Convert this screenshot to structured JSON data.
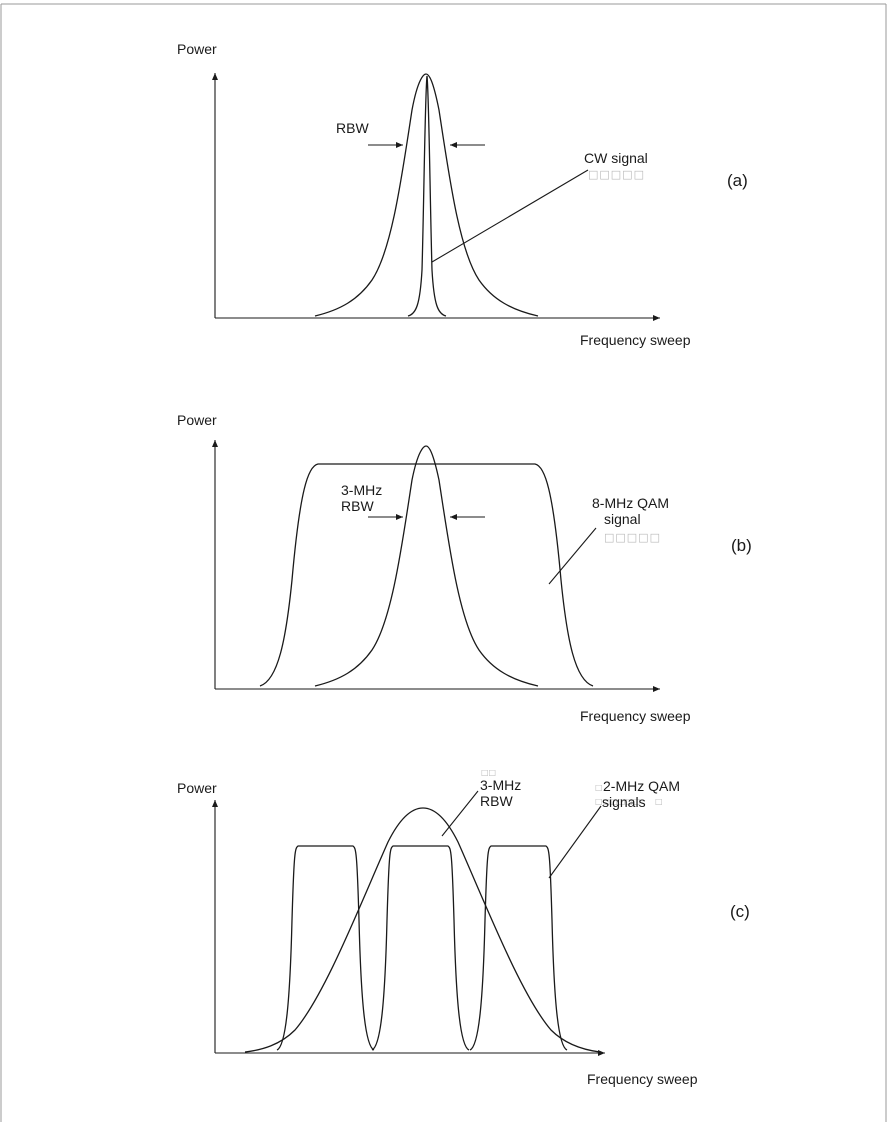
{
  "panels": [
    {
      "id": "a",
      "y_axis_label": "Power",
      "x_axis_label": "Frequency sweep",
      "panel_label": "(a)",
      "rbw_label": "RBW",
      "signal_label": "CW signal",
      "signal_placeholder": "□□□□□"
    },
    {
      "id": "b",
      "y_axis_label": "Power",
      "x_axis_label": "Frequency sweep",
      "panel_label": "(b)",
      "rbw_line1": "3-MHz",
      "rbw_line2": "RBW",
      "signal_line1": "8-MHz QAM",
      "signal_line2": "signal",
      "signal_placeholder": "□□□□□"
    },
    {
      "id": "c",
      "y_axis_label": "Power",
      "x_axis_label": "Frequency sweep",
      "panel_label": "(c)",
      "rbw_placeholder": "□□",
      "rbw_line1": "3-MHz",
      "rbw_line2": "RBW",
      "signal_prefix": "□",
      "signal_line1": "2-MHz QAM",
      "signal_placeholder": "□□□□□□",
      "signal_line2": "signals",
      "signal_suffix": "□"
    }
  ]
}
